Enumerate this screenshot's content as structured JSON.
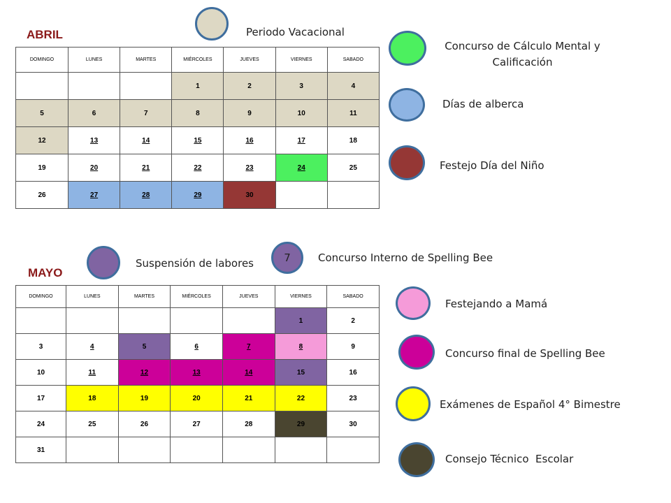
{
  "abril": {
    "title": "ABRIL",
    "headers": [
      "DOMINGO",
      "LUNES",
      "MARTES",
      "MIÉRCOLES",
      "JUEVES",
      "VIERNES",
      "SABADO"
    ],
    "weeks": [
      [
        {
          "t": "",
          "c": ""
        },
        {
          "t": "",
          "c": ""
        },
        {
          "t": "",
          "c": ""
        },
        {
          "t": "1",
          "c": "#ddd8c4"
        },
        {
          "t": "2",
          "c": "#ddd8c4"
        },
        {
          "t": "3",
          "c": "#ddd8c4"
        },
        {
          "t": "4",
          "c": "#ddd8c4"
        }
      ],
      [
        {
          "t": "5",
          "c": "#ddd8c4"
        },
        {
          "t": "6",
          "c": "#ddd8c4"
        },
        {
          "t": "7",
          "c": "#ddd8c4"
        },
        {
          "t": "8",
          "c": "#ddd8c4"
        },
        {
          "t": "9",
          "c": "#ddd8c4"
        },
        {
          "t": "10",
          "c": "#ddd8c4"
        },
        {
          "t": "11",
          "c": "#ddd8c4"
        }
      ],
      [
        {
          "t": "12",
          "c": "#ddd8c4"
        },
        {
          "t": "13",
          "c": "",
          "u": true
        },
        {
          "t": "14",
          "c": "",
          "u": true
        },
        {
          "t": "15",
          "c": "",
          "u": true
        },
        {
          "t": "16",
          "c": "",
          "u": true
        },
        {
          "t": "17",
          "c": "",
          "u": true
        },
        {
          "t": "18",
          "c": ""
        }
      ],
      [
        {
          "t": "19",
          "c": ""
        },
        {
          "t": "20",
          "c": "",
          "u": true
        },
        {
          "t": "21",
          "c": "",
          "u": true
        },
        {
          "t": "22",
          "c": "",
          "u": true
        },
        {
          "t": "23",
          "c": "",
          "u": true
        },
        {
          "t": "24",
          "c": "#4cf05f",
          "u": true
        },
        {
          "t": "25",
          "c": ""
        }
      ],
      [
        {
          "t": "26",
          "c": ""
        },
        {
          "t": "27",
          "c": "#8eb4e3",
          "u": true
        },
        {
          "t": "28",
          "c": "#8eb4e3",
          "u": true
        },
        {
          "t": "29",
          "c": "#8eb4e3",
          "u": true
        },
        {
          "t": "30",
          "c": "#953735"
        },
        {
          "t": "",
          "c": ""
        },
        {
          "t": "",
          "c": ""
        }
      ]
    ]
  },
  "mayo": {
    "title": "MAYO",
    "headers": [
      "DOMINGO",
      "LUNES",
      "MARTES",
      "MIÉRCOLES",
      "JUEVES",
      "VIERNES",
      "SABADO"
    ],
    "weeks": [
      [
        {
          "t": "",
          "c": ""
        },
        {
          "t": "",
          "c": ""
        },
        {
          "t": "",
          "c": ""
        },
        {
          "t": "",
          "c": ""
        },
        {
          "t": "",
          "c": ""
        },
        {
          "t": "1",
          "c": "#8064a2"
        },
        {
          "t": "2",
          "c": ""
        }
      ],
      [
        {
          "t": "3",
          "c": ""
        },
        {
          "t": "4",
          "c": "",
          "u": true
        },
        {
          "t": "5",
          "c": "#8064a2"
        },
        {
          "t": "6",
          "c": "",
          "u": true
        },
        {
          "t": "7",
          "c": "#cc0099",
          "u": true
        },
        {
          "t": "8",
          "c": "#f59bd9",
          "u": true
        },
        {
          "t": "9",
          "c": ""
        }
      ],
      [
        {
          "t": "10",
          "c": ""
        },
        {
          "t": "11",
          "c": "",
          "u": true
        },
        {
          "t": "12",
          "c": "#cc0099",
          "u": true
        },
        {
          "t": "13",
          "c": "#cc0099",
          "u": true
        },
        {
          "t": "14",
          "c": "#cc0099",
          "u": true
        },
        {
          "t": "15",
          "c": "#8064a2"
        },
        {
          "t": "16",
          "c": ""
        }
      ],
      [
        {
          "t": "17",
          "c": ""
        },
        {
          "t": "18",
          "c": "#ffff00"
        },
        {
          "t": "19",
          "c": "#ffff00"
        },
        {
          "t": "20",
          "c": "#ffff00"
        },
        {
          "t": "21",
          "c": "#ffff00"
        },
        {
          "t": "22",
          "c": "#ffff00"
        },
        {
          "t": "23",
          "c": ""
        }
      ],
      [
        {
          "t": "24",
          "c": ""
        },
        {
          "t": "25",
          "c": ""
        },
        {
          "t": "26",
          "c": ""
        },
        {
          "t": "27",
          "c": ""
        },
        {
          "t": "28",
          "c": ""
        },
        {
          "t": "29",
          "c": "#4a4530"
        },
        {
          "t": "30",
          "c": ""
        }
      ],
      [
        {
          "t": "31",
          "c": ""
        },
        {
          "t": "",
          "c": ""
        },
        {
          "t": "",
          "c": ""
        },
        {
          "t": "",
          "c": ""
        },
        {
          "t": "",
          "c": ""
        },
        {
          "t": "",
          "c": ""
        },
        {
          "t": "",
          "c": ""
        }
      ]
    ]
  },
  "legend": {
    "periodo_vacacional": {
      "label": "Periodo Vacacional",
      "color": "#ddd8c4"
    },
    "calculo_mental": {
      "label": "Concurso de Cálculo Mental y Calificación",
      "color": "#4cf05f"
    },
    "alberca": {
      "label": "Días de alberca",
      "color": "#8eb4e3"
    },
    "dia_nino": {
      "label": "Festejo Día del Niño",
      "color": "#953735"
    },
    "suspension": {
      "label": "Suspensión de labores",
      "color": "#8064a2"
    },
    "spelling_interno": {
      "label": "Concurso Interno de Spelling Bee",
      "color": "#8064a2",
      "number": "7"
    },
    "mama": {
      "label": "Festejando a Mamá",
      "color": "#f59bd9"
    },
    "spelling_final": {
      "label": "Concurso final de Spelling Bee",
      "color": "#cc0099"
    },
    "examenes": {
      "label": "Exámenes de Español 4° Bimestre",
      "color": "#ffff00"
    },
    "consejo": {
      "label": "Consejo Técnico  Escolar",
      "color": "#4a4530"
    }
  }
}
